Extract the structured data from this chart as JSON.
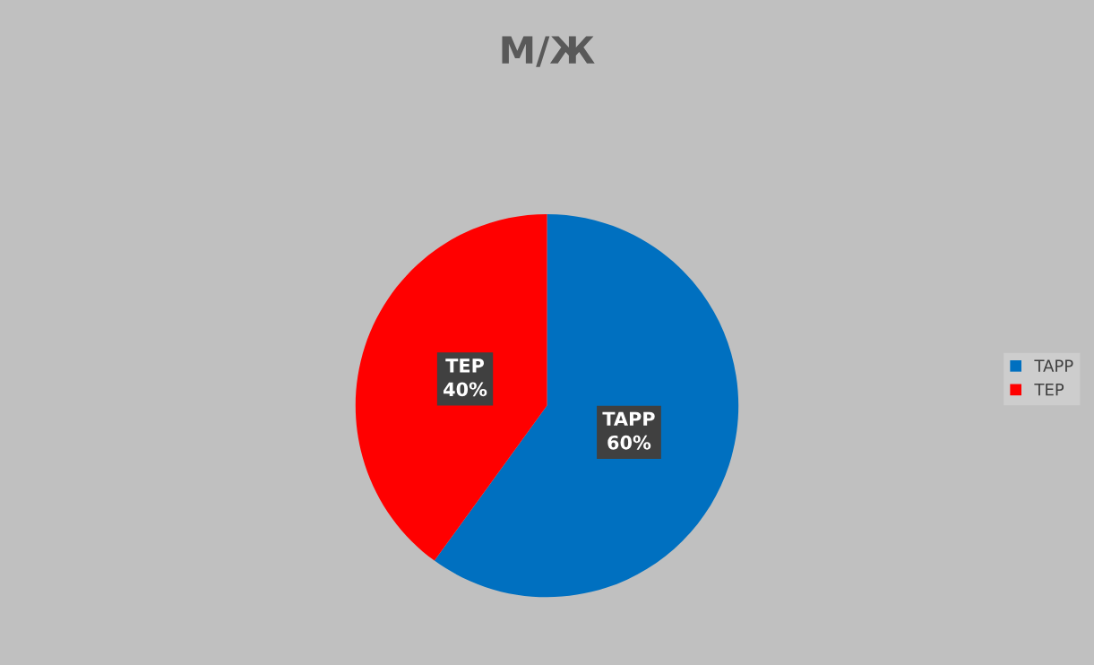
{
  "chart_data": {
    "type": "pie",
    "title": "М/Ж",
    "categories": [
      "TAPP",
      "TEP"
    ],
    "values": [
      60,
      40
    ],
    "colors": [
      "#0070c0",
      "#ff0000"
    ],
    "value_labels": [
      "TAPP\n60%",
      "TEP\n40%"
    ],
    "legend": "right"
  }
}
